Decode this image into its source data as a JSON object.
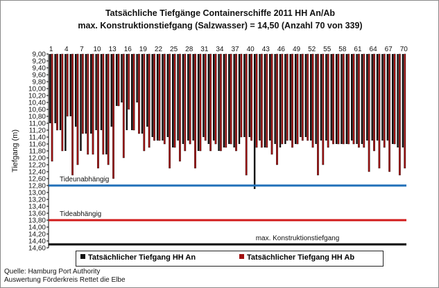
{
  "chart_data": {
    "type": "bar",
    "title": "Tatsächliche Tiefgänge Containerschiffe  2011 HH An/Ab",
    "subtitle": "max. Konstruktionstiefgang  (Salzwasser)  = 14,50 (Anzahl 70 von 339)",
    "ylabel": "Tiefgang (m)",
    "xlabel": "",
    "ylim": [
      9.0,
      14.6
    ],
    "y_inverted": true,
    "ytick_labels": [
      "9,00",
      "9,20",
      "9,40",
      "9,60",
      "9,80",
      "10,00",
      "10,20",
      "10,40",
      "10,60",
      "10,80",
      "11,00",
      "11,20",
      "11,40",
      "11,60",
      "11,80",
      "12,00",
      "12,20",
      "12,40",
      "12,60",
      "12,80",
      "13,00",
      "13,20",
      "13,40",
      "13,60",
      "13,80",
      "14,00",
      "14,20",
      "14,40",
      "14,60"
    ],
    "xtick_labels": [
      "1",
      "4",
      "7",
      "10",
      "13",
      "16",
      "19",
      "22",
      "25",
      "28",
      "31",
      "34",
      "37",
      "40",
      "43",
      "46",
      "49",
      "52",
      "55",
      "58",
      "61",
      "64",
      "67",
      "70"
    ],
    "categories": [
      1,
      2,
      3,
      4,
      5,
      6,
      7,
      8,
      9,
      10,
      11,
      12,
      13,
      14,
      15,
      16,
      17,
      18,
      19,
      20,
      21,
      22,
      23,
      24,
      25,
      26,
      27,
      28,
      29,
      30,
      31,
      32,
      33,
      34,
      35,
      36,
      37,
      38,
      39,
      40,
      41,
      42,
      43,
      44,
      45,
      46,
      47,
      48,
      49,
      50,
      51,
      52,
      53,
      54,
      55,
      56,
      57,
      58,
      59,
      60,
      61,
      62,
      63,
      64,
      65,
      66,
      67,
      68,
      69,
      70
    ],
    "series": [
      {
        "name": "Tatsächlicher Tiefgang HH An",
        "color": "#111111",
        "values": [
          11.0,
          11.0,
          11.2,
          11.8,
          10.8,
          11.1,
          11.8,
          11.3,
          11.3,
          11.2,
          11.2,
          11.9,
          11.1,
          10.5,
          10.4,
          11.2,
          11.2,
          10.4,
          11.3,
          11.1,
          11.4,
          11.5,
          11.5,
          11.4,
          11.7,
          11.5,
          11.6,
          11.5,
          11.5,
          11.8,
          11.4,
          11.6,
          11.5,
          11.8,
          11.7,
          11.6,
          11.7,
          11.6,
          11.4,
          11.4,
          12.9,
          11.5,
          11.7,
          11.5,
          11.6,
          11.7,
          11.6,
          11.5,
          11.6,
          11.4,
          11.4,
          11.5,
          11.6,
          11.5,
          11.5,
          11.5,
          11.6,
          11.6,
          11.6,
          11.5,
          11.6,
          11.6,
          11.5,
          11.5,
          11.5,
          11.5,
          11.5,
          11.6,
          11.7,
          11.7
        ]
      },
      {
        "name": "Tatsächlicher Tiefgang HH Ab",
        "color": "#a01010",
        "values": [
          12.1,
          11.2,
          11.8,
          10.8,
          12.5,
          12.2,
          11.3,
          11.9,
          11.9,
          12.3,
          11.9,
          12.2,
          12.6,
          10.5,
          12.0,
          10.6,
          11.2,
          11.3,
          11.8,
          11.7,
          11.5,
          11.5,
          11.6,
          12.3,
          11.7,
          12.1,
          11.8,
          11.6,
          12.3,
          11.8,
          11.5,
          11.8,
          11.6,
          11.8,
          11.7,
          11.6,
          11.8,
          11.4,
          12.5,
          11.5,
          11.7,
          11.7,
          11.7,
          11.9,
          12.2,
          11.6,
          11.5,
          11.7,
          11.6,
          11.5,
          11.5,
          11.7,
          12.5,
          12.2,
          11.7,
          11.6,
          11.6,
          11.6,
          11.6,
          11.6,
          11.7,
          11.7,
          12.4,
          11.8,
          12.3,
          11.7,
          12.4,
          11.6,
          12.5,
          12.3
        ]
      }
    ],
    "reference_lines": [
      {
        "label": "Tideunabhängig",
        "y": 12.8,
        "color": "#1f6fb8"
      },
      {
        "label": "Tideabhängig",
        "y": 13.8,
        "color": "#d11a1a"
      },
      {
        "label": "max. Konstruktionstiefgang",
        "y": 14.5,
        "color": "#000000"
      }
    ],
    "grid": false,
    "legend_position": "bottom"
  },
  "source": {
    "line1": "Quelle: Hamburg Port Authority",
    "line2": "Auswertung Förderkreis Rettet die Elbe"
  }
}
